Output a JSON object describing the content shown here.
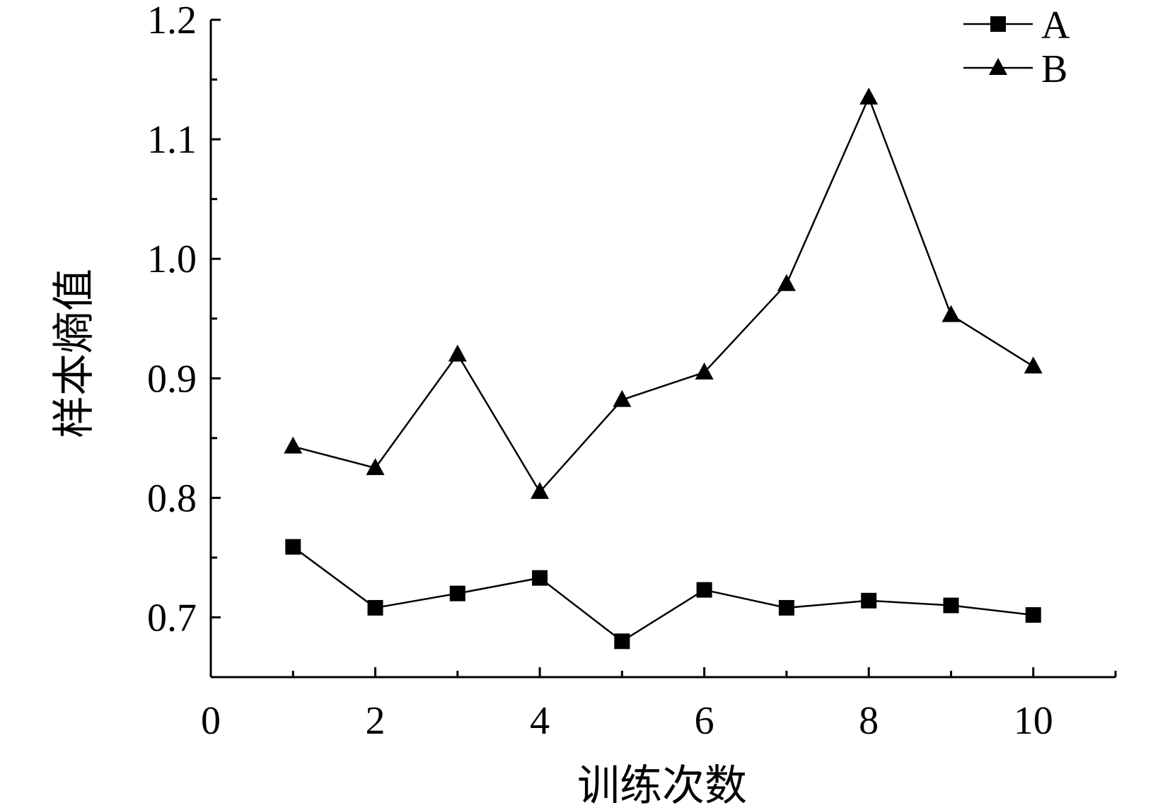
{
  "chart_data": {
    "type": "line",
    "xlabel": "训练次数",
    "ylabel": "样本熵值",
    "xlim": [
      0,
      11
    ],
    "ylim": [
      0.65,
      1.2
    ],
    "x_ticks": [
      0,
      2,
      4,
      6,
      8,
      10
    ],
    "x_tick_labels": [
      "0",
      "2",
      "4",
      "6",
      "8",
      "10"
    ],
    "y_ticks": [
      0.7,
      0.8,
      0.9,
      1.0,
      1.1,
      1.2
    ],
    "y_tick_labels": [
      "0.7",
      "0.8",
      "0.9",
      "1.0",
      "1.1",
      "1.2"
    ],
    "grid": false,
    "legend_position": "top-right",
    "x": [
      1,
      2,
      3,
      4,
      5,
      6,
      7,
      8,
      9,
      10
    ],
    "series": [
      {
        "name": "A",
        "marker": "square",
        "values": [
          0.759,
          0.708,
          0.72,
          0.733,
          0.68,
          0.723,
          0.708,
          0.714,
          0.71,
          0.702
        ]
      },
      {
        "name": "B",
        "marker": "triangle",
        "values": [
          0.843,
          0.825,
          0.92,
          0.805,
          0.882,
          0.905,
          0.979,
          1.135,
          0.953,
          0.91
        ]
      }
    ],
    "colors": {
      "line": "#000000",
      "marker": "#000000"
    }
  }
}
